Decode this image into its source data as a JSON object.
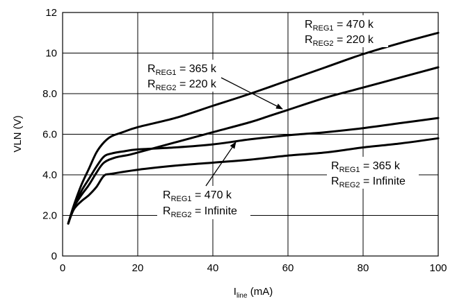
{
  "chart_data": {
    "type": "line",
    "xlabel": {
      "main": "I",
      "sub": "line",
      "unit": " (mA)"
    },
    "ylabel": "VLN (V)",
    "xlim": [
      0,
      100
    ],
    "ylim": [
      0,
      12
    ],
    "grid": true,
    "x_ticks": [
      "0",
      "20",
      "40",
      "60",
      "80",
      "100"
    ],
    "y_ticks": [
      "0",
      "2.0",
      "4.0",
      "6.0",
      "8.0",
      "10",
      "12"
    ],
    "series": [
      {
        "key": "r470_r220",
        "points": [
          [
            1.5,
            1.6
          ],
          [
            3,
            2.5
          ],
          [
            5,
            3.5
          ],
          [
            7,
            4.3
          ],
          [
            9,
            5.1
          ],
          [
            11,
            5.6
          ],
          [
            13,
            5.9
          ],
          [
            16,
            6.1
          ],
          [
            20,
            6.35
          ],
          [
            30,
            6.8
          ],
          [
            40,
            7.4
          ],
          [
            50,
            8.0
          ],
          [
            60,
            8.65
          ],
          [
            70,
            9.3
          ],
          [
            80,
            9.95
          ],
          [
            90,
            10.5
          ],
          [
            100,
            11.0
          ]
        ]
      },
      {
        "key": "r365_r220",
        "points": [
          [
            1.5,
            1.6
          ],
          [
            3,
            2.4
          ],
          [
            5,
            3.0
          ],
          [
            7,
            3.5
          ],
          [
            9,
            4.1
          ],
          [
            11,
            4.6
          ],
          [
            14,
            4.85
          ],
          [
            18,
            5.0
          ],
          [
            22,
            5.2
          ],
          [
            30,
            5.6
          ],
          [
            40,
            6.1
          ],
          [
            50,
            6.6
          ],
          [
            55,
            6.9
          ],
          [
            60,
            7.2
          ],
          [
            70,
            7.8
          ],
          [
            80,
            8.3
          ],
          [
            90,
            8.8
          ],
          [
            100,
            9.3
          ]
        ]
      },
      {
        "key": "r470_inf",
        "points": [
          [
            1.5,
            1.6
          ],
          [
            3,
            2.4
          ],
          [
            5,
            3.2
          ],
          [
            7,
            3.8
          ],
          [
            9,
            4.4
          ],
          [
            11,
            4.9
          ],
          [
            13,
            5.05
          ],
          [
            16,
            5.15
          ],
          [
            20,
            5.25
          ],
          [
            30,
            5.35
          ],
          [
            40,
            5.5
          ],
          [
            50,
            5.75
          ],
          [
            60,
            5.95
          ],
          [
            70,
            6.1
          ],
          [
            80,
            6.3
          ],
          [
            90,
            6.55
          ],
          [
            100,
            6.8
          ]
        ]
      },
      {
        "key": "r365_inf",
        "points": [
          [
            1.5,
            1.6
          ],
          [
            3,
            2.3
          ],
          [
            5,
            2.7
          ],
          [
            7,
            3.0
          ],
          [
            9,
            3.4
          ],
          [
            11,
            3.95
          ],
          [
            13,
            4.05
          ],
          [
            20,
            4.25
          ],
          [
            30,
            4.45
          ],
          [
            40,
            4.6
          ],
          [
            50,
            4.75
          ],
          [
            60,
            4.95
          ],
          [
            70,
            5.1
          ],
          [
            80,
            5.35
          ],
          [
            90,
            5.55
          ],
          [
            100,
            5.8
          ]
        ]
      }
    ],
    "annotations": [
      {
        "key": "a1",
        "line1": {
          "main": "R",
          "sub": "REG1",
          "rest": " = 470 k"
        },
        "line2": {
          "main": "R",
          "sub": "REG2",
          "rest": " = 220 k"
        }
      },
      {
        "key": "a2",
        "line1": {
          "main": "R",
          "sub": "REG1",
          "rest": " = 365 k"
        },
        "line2": {
          "main": "R",
          "sub": "REG2",
          "rest": " = 220 k"
        }
      },
      {
        "key": "a3",
        "line1": {
          "main": "R",
          "sub": "REG1",
          "rest": " = 365 k"
        },
        "line2": {
          "main": "R",
          "sub": "REG2",
          "rest": " = Infinite"
        }
      },
      {
        "key": "a4",
        "line1": {
          "main": "R",
          "sub": "REG1",
          "rest": " = 470 k"
        },
        "line2": {
          "main": "R",
          "sub": "REG2",
          "rest": " = Infinite"
        }
      }
    ],
    "colors": {
      "line": "#000000",
      "grid": "#000000",
      "background": "#ffffff"
    }
  }
}
